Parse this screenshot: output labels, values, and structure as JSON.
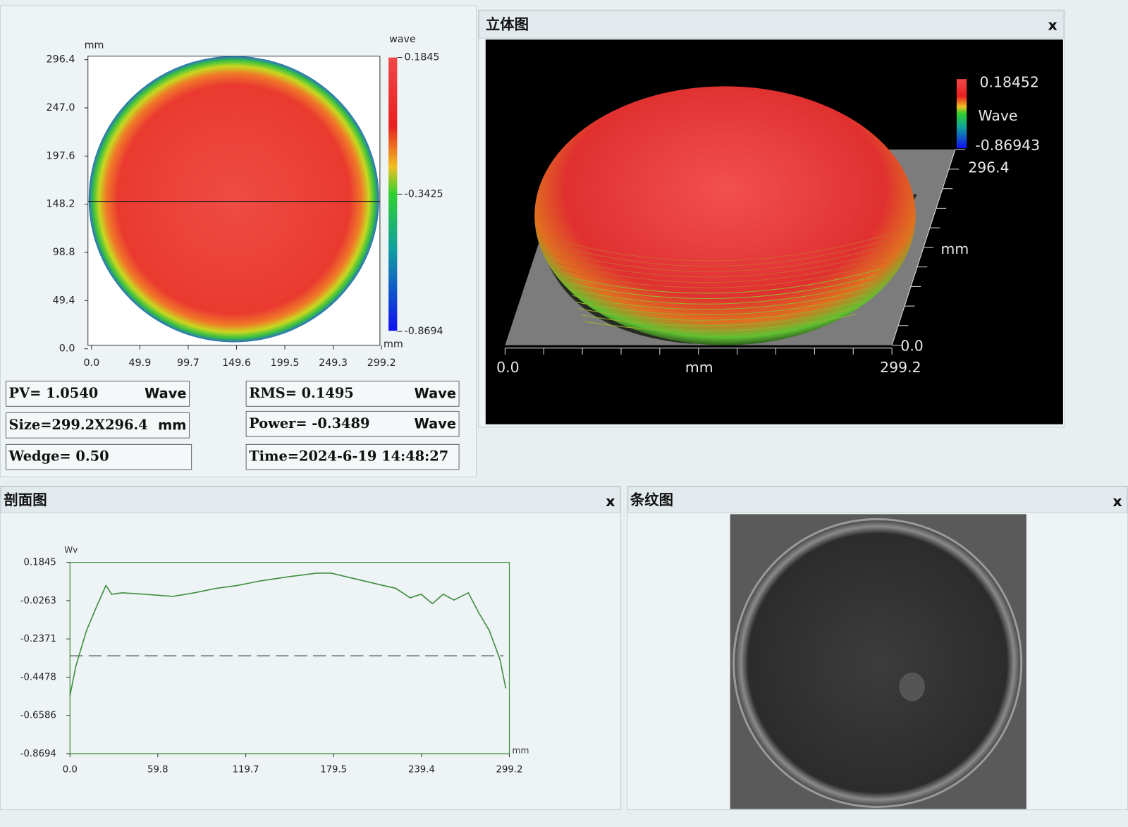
{
  "surface_map": {
    "y_unit": "mm",
    "x_unit": "mm",
    "colorbar_unit": "wave",
    "yticks": [
      "296.4",
      "247.0",
      "197.6",
      "148.2",
      "98.8",
      "49.4",
      "0.0"
    ],
    "xticks": [
      "0.0",
      "49.9",
      "99.7",
      "149.6",
      "199.5",
      "249.3",
      "299.2"
    ],
    "colorbar_ticks": [
      "0.1845",
      "-0.3425",
      "-0.8694"
    ]
  },
  "stats": [
    {
      "text": "PV= 1.0540",
      "unit": "Wave"
    },
    {
      "text": "RMS=  0.1495",
      "unit": "Wave"
    },
    {
      "text": "Size=299.2X296.4",
      "unit": "mm"
    },
    {
      "text": "Power=  -0.3489",
      "unit": "Wave"
    },
    {
      "text": "Wedge=  0.50"
    },
    {
      "text": "Time=2024-6-19 14:48:27"
    }
  ],
  "view_3d": {
    "title": "立体图",
    "close": "x",
    "colorbar_max": "0.18452",
    "colorbar_unit": "Wave",
    "colorbar_min": "-0.86943",
    "y_max": "296.4",
    "y_unit": "mm",
    "y_min": "0.0",
    "x_min": "0.0",
    "x_unit": "mm",
    "x_max": "299.2"
  },
  "profile_panel": {
    "title": "剖面图",
    "close": "x"
  },
  "fringe_panel": {
    "title": "条纹图",
    "close": "x"
  },
  "chart_data": {
    "type": "line",
    "y_label": "Wv",
    "x_label": "mm",
    "x": [
      0,
      3.9,
      11.3,
      18.6,
      24.5,
      28.4,
      35.7,
      50.4,
      70,
      84.7,
      99.4,
      114,
      128.8,
      148.4,
      168,
      177.8,
      192.5,
      207.2,
      221.9,
      231.7,
      239,
      246.8,
      254.1,
      261.5,
      271.3,
      278.2,
      285.5,
      292.8,
      296.8
    ],
    "values": [
      -0.55,
      -0.39,
      -0.19,
      -0.05,
      0.057,
      0.009,
      0.017,
      0.009,
      -0.003,
      0.017,
      0.041,
      0.057,
      0.081,
      0.105,
      0.125,
      0.125,
      0.097,
      0.069,
      0.041,
      -0.011,
      0.009,
      -0.043,
      0.009,
      -0.023,
      0.017,
      -0.091,
      -0.19,
      -0.35,
      -0.51
    ],
    "color": "#3f8f3f",
    "xlim": [
      0,
      299.2
    ],
    "ylim": [
      -0.8694,
      0.1845
    ],
    "xticks": [
      {
        "value": 0,
        "label": "0.0"
      },
      59.8,
      119.7,
      179.5,
      239.4,
      299.2
    ],
    "yticks": [
      0.1845,
      -0.0263,
      -0.2371,
      -0.4478,
      -0.6586,
      -0.8694
    ],
    "reference_line": -0.33
  }
}
